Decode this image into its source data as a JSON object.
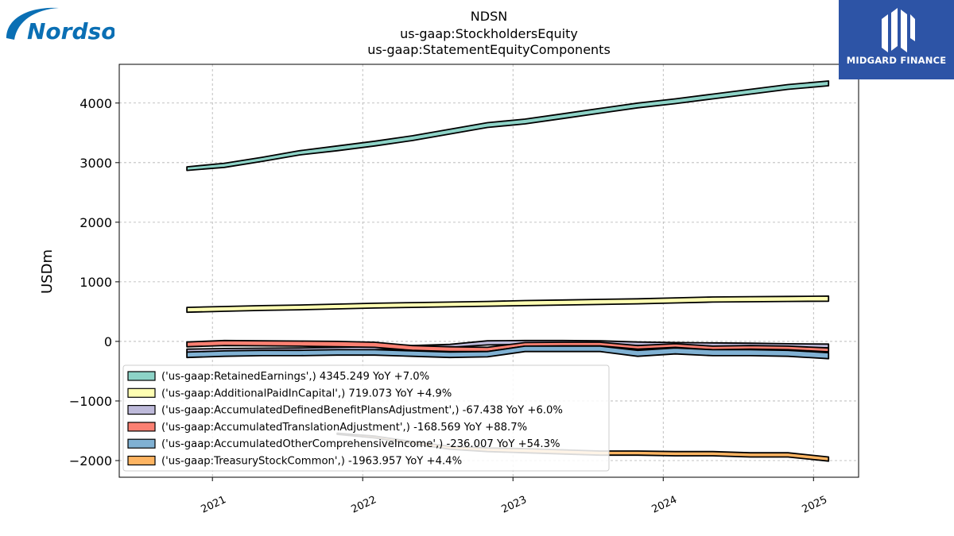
{
  "branding": {
    "left_logo_text": "Nordson",
    "right_logo_text": "MIDGARD FINANCE",
    "left_logo_color": "#0a6fb4",
    "right_logo_bg": "#2d54a6"
  },
  "chart_data": {
    "type": "area",
    "title_lines": [
      "NDSN",
      "us-gaap:StockholdersEquity",
      "us-gaap:StatementEquityComponents"
    ],
    "ylabel": "USDm",
    "xlabel": "",
    "ylim": [
      -2280,
      4650
    ],
    "xlim": [
      2020.38,
      2025.3
    ],
    "yticks": [
      -2000,
      -1000,
      0,
      1000,
      2000,
      3000,
      4000
    ],
    "ytick_labels": [
      "−2000",
      "−1000",
      "0",
      "1000",
      "2000",
      "3000",
      "4000"
    ],
    "xticks": [
      2021,
      2022,
      2023,
      2024,
      2025
    ],
    "xtick_labels": [
      "2021",
      "2022",
      "2023",
      "2024",
      "2025"
    ],
    "grid": true,
    "legend_position": "lower-left",
    "series": [
      {
        "name": "('us-gaap:RetainedEarnings',) 4345.249 YoY +7.0%",
        "color": "#8dd3c7",
        "x": [
          2020.83,
          2021.08,
          2021.33,
          2021.58,
          2021.83,
          2022.08,
          2022.33,
          2022.58,
          2022.83,
          2023.08,
          2023.33,
          2023.58,
          2023.83,
          2024.08,
          2024.33,
          2024.58,
          2024.83,
          2025.1
        ],
        "upper": [
          2930,
          2990,
          3090,
          3200,
          3280,
          3360,
          3450,
          3560,
          3670,
          3730,
          3820,
          3910,
          4000,
          4070,
          4150,
          4230,
          4310,
          4370
        ],
        "lower": [
          2870,
          2920,
          3020,
          3130,
          3200,
          3280,
          3370,
          3480,
          3590,
          3650,
          3740,
          3830,
          3920,
          3990,
          4070,
          4150,
          4230,
          4290
        ]
      },
      {
        "name": "('us-gaap:AdditionalPaidInCapital',) 719.073 YoY +4.9%",
        "color": "#ffffb3",
        "x": [
          2020.83,
          2021.08,
          2021.33,
          2021.58,
          2021.83,
          2022.08,
          2022.33,
          2022.58,
          2022.83,
          2023.08,
          2023.33,
          2023.58,
          2023.83,
          2024.08,
          2024.33,
          2024.58,
          2024.83,
          2025.1
        ],
        "upper": [
          570,
          585,
          600,
          610,
          625,
          640,
          650,
          660,
          670,
          685,
          695,
          705,
          715,
          730,
          745,
          750,
          755,
          760
        ],
        "lower": [
          490,
          505,
          520,
          530,
          545,
          560,
          570,
          580,
          590,
          600,
          610,
          620,
          630,
          645,
          660,
          665,
          670,
          675
        ]
      },
      {
        "name": "('us-gaap:AccumulatedDefinedBenefitPlansAdjustment',) -67.438 YoY +6.0%",
        "color": "#bebada",
        "x": [
          2020.83,
          2021.08,
          2021.33,
          2021.58,
          2021.83,
          2022.08,
          2022.33,
          2022.58,
          2022.83,
          2023.08,
          2023.33,
          2023.58,
          2023.83,
          2024.08,
          2024.33,
          2024.58,
          2024.83,
          2025.1
        ],
        "upper": [
          -130,
          -120,
          -115,
          -110,
          -100,
          -90,
          -70,
          -50,
          10,
          15,
          15,
          10,
          -10,
          -20,
          -25,
          -30,
          -40,
          -45
        ],
        "lower": [
          -180,
          -170,
          -165,
          -160,
          -150,
          -140,
          -120,
          -100,
          -60,
          -50,
          -50,
          -55,
          -70,
          -80,
          -85,
          -90,
          -100,
          -110
        ]
      },
      {
        "name": "('us-gaap:AccumulatedTranslationAdjustment',) -168.569 YoY +88.7%",
        "color": "#fb8072",
        "x": [
          2020.83,
          2021.08,
          2021.33,
          2021.58,
          2021.83,
          2022.08,
          2022.33,
          2022.58,
          2022.83,
          2023.08,
          2023.33,
          2023.58,
          2023.83,
          2024.08,
          2024.33,
          2024.58,
          2024.83,
          2025.1
        ],
        "upper": [
          -10,
          15,
          10,
          5,
          0,
          -15,
          -70,
          -90,
          -100,
          -20,
          -15,
          -15,
          -70,
          -40,
          -80,
          -70,
          -80,
          -110
        ],
        "lower": [
          -90,
          -70,
          -75,
          -80,
          -90,
          -100,
          -150,
          -170,
          -170,
          -80,
          -75,
          -75,
          -130,
          -100,
          -140,
          -130,
          -140,
          -175
        ]
      },
      {
        "name": "('us-gaap:AccumulatedOtherComprehensiveIncome',) -236.007 YoY +54.3%",
        "color": "#80b1d3",
        "x": [
          2020.83,
          2021.08,
          2021.33,
          2021.58,
          2021.83,
          2022.08,
          2022.33,
          2022.58,
          2022.83,
          2023.08,
          2023.33,
          2023.58,
          2023.83,
          2024.08,
          2024.33,
          2024.58,
          2024.83,
          2025.1
        ],
        "upper": [
          -180,
          -160,
          -150,
          -150,
          -140,
          -140,
          -160,
          -180,
          -170,
          -80,
          -80,
          -80,
          -150,
          -110,
          -140,
          -140,
          -150,
          -190
        ],
        "lower": [
          -270,
          -250,
          -240,
          -240,
          -230,
          -230,
          -250,
          -270,
          -260,
          -170,
          -170,
          -170,
          -250,
          -210,
          -240,
          -240,
          -250,
          -290
        ]
      },
      {
        "name": "('us-gaap:TreasuryStockCommon',) -1963.957 YoY +4.4%",
        "color": "#fdb462",
        "x": [
          2021.83,
          2022.08,
          2022.33,
          2022.58,
          2022.83,
          2023.08,
          2023.33,
          2023.58,
          2023.83,
          2024.08,
          2024.33,
          2024.58,
          2024.83,
          2025.1
        ],
        "upper": [
          -1540,
          -1590,
          -1680,
          -1760,
          -1790,
          -1800,
          -1820,
          -1840,
          -1840,
          -1850,
          -1850,
          -1870,
          -1870,
          -1940
        ],
        "lower": [
          -1560,
          -1620,
          -1720,
          -1810,
          -1850,
          -1870,
          -1890,
          -1910,
          -1910,
          -1920,
          -1920,
          -1940,
          -1940,
          -2010
        ]
      }
    ]
  }
}
